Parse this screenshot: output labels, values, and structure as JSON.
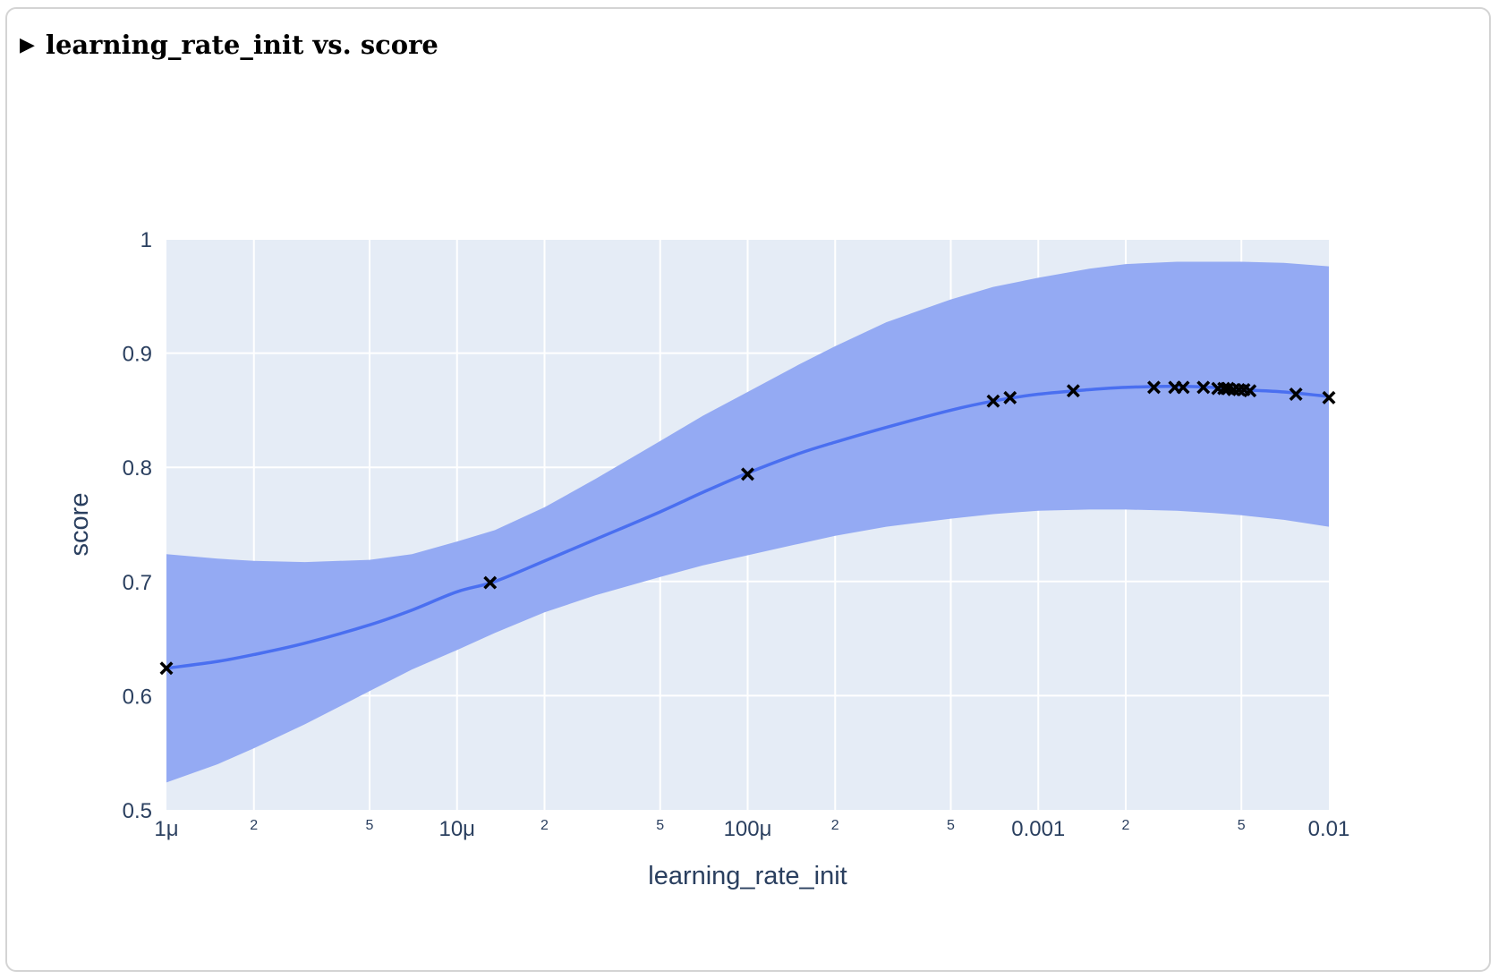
{
  "summary": {
    "title": "learning_rate_init vs. score"
  },
  "colors": {
    "plot_bg": "#e5ecf6",
    "grid": "#ffffff",
    "band": "#94aaf3",
    "line": "#4a6ff0",
    "marker": "#000000"
  },
  "chart_data": {
    "type": "line",
    "x_scale": "log",
    "xlabel": "learning_rate_init",
    "ylabel": "score",
    "xlim": [
      1e-06,
      0.01
    ],
    "ylim": [
      0.5,
      1.0
    ],
    "grid": true,
    "x_ticks": [
      {
        "value": 1e-06,
        "label": "1μ",
        "major": true
      },
      {
        "value": 2e-06,
        "label": "2",
        "major": false
      },
      {
        "value": 5e-06,
        "label": "5",
        "major": false
      },
      {
        "value": 1e-05,
        "label": "10μ",
        "major": true
      },
      {
        "value": 2e-05,
        "label": "2",
        "major": false
      },
      {
        "value": 5e-05,
        "label": "5",
        "major": false
      },
      {
        "value": 0.0001,
        "label": "100μ",
        "major": true
      },
      {
        "value": 0.0002,
        "label": "2",
        "major": false
      },
      {
        "value": 0.0005,
        "label": "5",
        "major": false
      },
      {
        "value": 0.001,
        "label": "0.001",
        "major": true
      },
      {
        "value": 0.002,
        "label": "2",
        "major": false
      },
      {
        "value": 0.005,
        "label": "5",
        "major": false
      },
      {
        "value": 0.01,
        "label": "0.01",
        "major": true
      }
    ],
    "y_ticks": [
      {
        "value": 0.5,
        "label": "0.5"
      },
      {
        "value": 0.6,
        "label": "0.6"
      },
      {
        "value": 0.7,
        "label": "0.7"
      },
      {
        "value": 0.8,
        "label": "0.8"
      },
      {
        "value": 0.9,
        "label": "0.9"
      },
      {
        "value": 1.0,
        "label": "1"
      }
    ],
    "mean_curve": {
      "x": [
        1e-06,
        1.5e-06,
        2e-06,
        3e-06,
        5e-06,
        7e-06,
        1e-05,
        1.35e-05,
        2e-05,
        3e-05,
        5e-05,
        7e-05,
        0.0001,
        0.00015,
        0.0002,
        0.0003,
        0.0005,
        0.0007,
        0.001,
        0.0015,
        0.002,
        0.003,
        0.004,
        0.005,
        0.007,
        0.01
      ],
      "y": [
        0.624,
        0.63,
        0.636,
        0.646,
        0.662,
        0.675,
        0.691,
        0.7,
        0.718,
        0.737,
        0.761,
        0.778,
        0.795,
        0.812,
        0.822,
        0.835,
        0.85,
        0.858,
        0.864,
        0.868,
        0.87,
        0.871,
        0.87,
        0.868,
        0.866,
        0.862
      ]
    },
    "confidence_band": {
      "x": [
        1e-06,
        1.5e-06,
        2e-06,
        3e-06,
        5e-06,
        7e-06,
        1e-05,
        1.35e-05,
        2e-05,
        3e-05,
        5e-05,
        7e-05,
        0.0001,
        0.00015,
        0.0002,
        0.0003,
        0.0005,
        0.0007,
        0.001,
        0.0015,
        0.002,
        0.003,
        0.004,
        0.005,
        0.007,
        0.01
      ],
      "upper": [
        0.724,
        0.72,
        0.718,
        0.717,
        0.719,
        0.724,
        0.735,
        0.745,
        0.765,
        0.79,
        0.823,
        0.845,
        0.866,
        0.89,
        0.906,
        0.927,
        0.947,
        0.958,
        0.966,
        0.974,
        0.978,
        0.98,
        0.98,
        0.98,
        0.979,
        0.976
      ],
      "lower": [
        0.524,
        0.54,
        0.554,
        0.575,
        0.604,
        0.623,
        0.64,
        0.655,
        0.673,
        0.688,
        0.704,
        0.714,
        0.723,
        0.733,
        0.74,
        0.748,
        0.755,
        0.759,
        0.762,
        0.763,
        0.763,
        0.762,
        0.76,
        0.758,
        0.754,
        0.748
      ]
    },
    "observations": {
      "x": [
        1e-06,
        1.3e-05,
        0.0001,
        0.0007,
        0.0008,
        0.00132,
        0.0025,
        0.00295,
        0.00315,
        0.0037,
        0.00415,
        0.00435,
        0.0045,
        0.0047,
        0.0049,
        0.0051,
        0.00535,
        0.0077,
        0.01
      ],
      "y": [
        0.624,
        0.699,
        0.794,
        0.858,
        0.861,
        0.867,
        0.87,
        0.87,
        0.87,
        0.87,
        0.869,
        0.869,
        0.869,
        0.868,
        0.868,
        0.868,
        0.867,
        0.864,
        0.861
      ]
    }
  }
}
